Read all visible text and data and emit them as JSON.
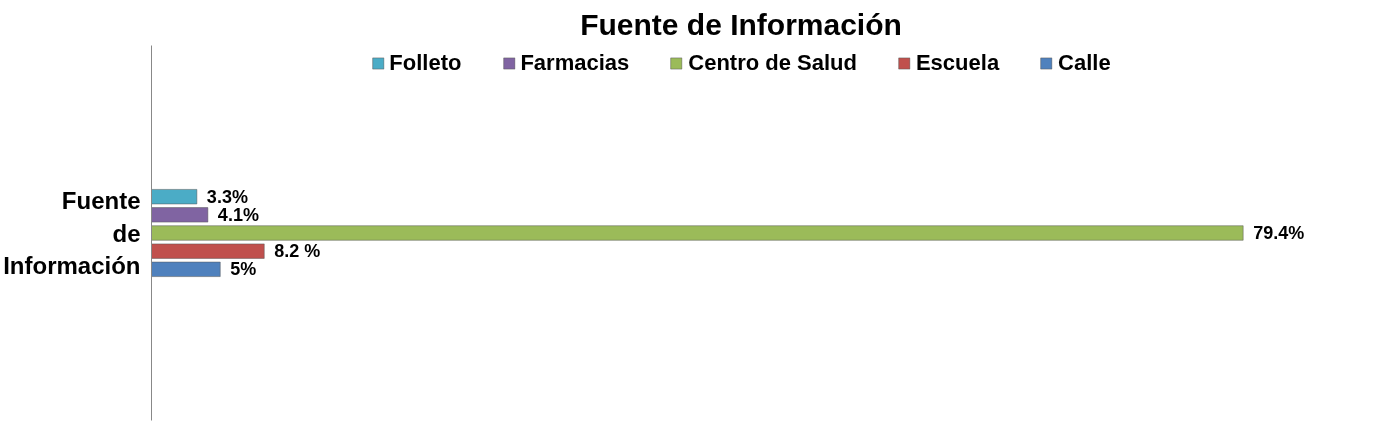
{
  "chart_data": {
    "type": "bar",
    "orientation": "horizontal",
    "title": "Fuente de Información",
    "categories": [
      "Fuente de Información"
    ],
    "series": [
      {
        "name": "Folleto",
        "color": "#4bacc6",
        "values": [
          3.3
        ],
        "value_labels": [
          "3.3%"
        ]
      },
      {
        "name": "Farmacias",
        "color": "#8064a2",
        "values": [
          4.1
        ],
        "value_labels": [
          "4.1%"
        ]
      },
      {
        "name": "Centro de Salud",
        "color": "#9bbb59",
        "values": [
          79.4
        ],
        "value_labels": [
          "79.4%"
        ]
      },
      {
        "name": "Escuela",
        "color": "#c0504d",
        "values": [
          8.2
        ],
        "value_labels": [
          "8.2 %"
        ]
      },
      {
        "name": "Calle",
        "color": "#4f81bd",
        "values": [
          5
        ],
        "value_labels": [
          "5%"
        ]
      }
    ],
    "legend": "top",
    "grid": false
  }
}
